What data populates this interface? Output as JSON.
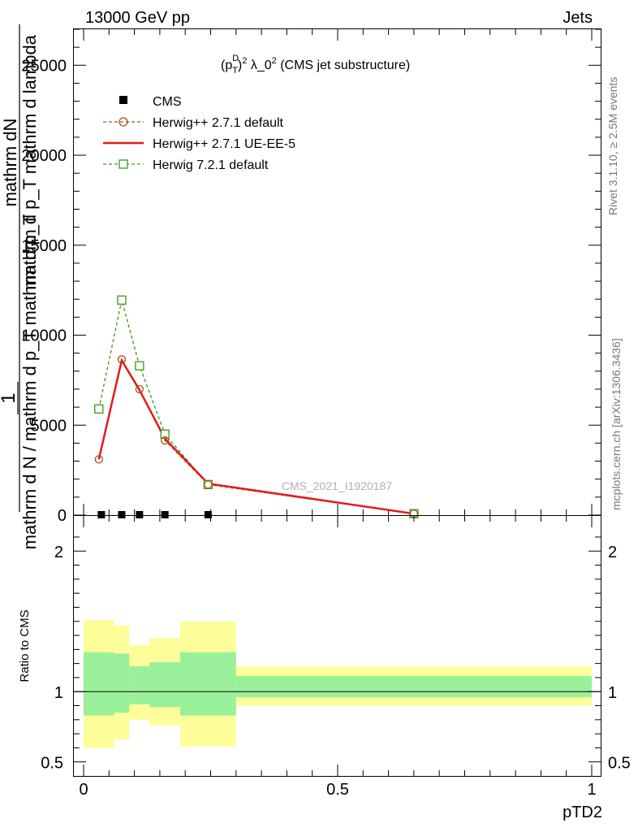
{
  "header": {
    "left": "13000 GeV pp",
    "right": "Jets"
  },
  "side": {
    "rivet": "Rivet 3.1.10, ≥ 2.5M events",
    "mcplots": "mcplots.cern.ch [arXiv:1306.3436]"
  },
  "plot_title": {
    "prefix": "(p",
    "sup_d": "D",
    "sub_t": "T",
    "sup_2": "2",
    "rest": " λ_0",
    "sup_2b": "2",
    "suffix": " (CMS jet substructure)"
  },
  "watermark": "CMS_2021_I1920187",
  "y_label": {
    "one": "1",
    "num": "mathrm dN",
    "den": "mathrm d p_T mathrm d lambda",
    "line2_top": "mathrm d",
    "line2_mid": "2",
    "line2_bot": "N",
    "line2_den": "mathrm d N / mathrm d p_T mathrm d p_T"
  },
  "ratio_label": "Ratio to CMS",
  "x_label": "pTD2",
  "colors": {
    "cms": "#000000",
    "h271_default": "#a0521e",
    "h271_ueee5": "#e8181c",
    "h721_default": "#3a9a12",
    "band_inner": "#9af09a",
    "band_outer": "#fdfd9a"
  },
  "chart_data": [
    {
      "type": "line",
      "title": "(p_T^D)^2 λ_0^2 (CMS jet substructure)",
      "xlim": [
        0,
        1
      ],
      "ylim": [
        0,
        27000
      ],
      "y_ticks": [
        0,
        5000,
        10000,
        15000,
        20000,
        25000
      ],
      "y_tick_labels": [
        "0",
        "5000",
        "10000",
        "15000",
        "20000",
        "25000"
      ],
      "legend_position": "top-left",
      "series": [
        {
          "name": "CMS",
          "x": [
            0.035,
            0.075,
            0.11,
            0.16,
            0.245
          ],
          "values": [
            0,
            0,
            0,
            0,
            0
          ],
          "marker": "square"
        },
        {
          "name": "Herwig++ 2.7.1 default",
          "x": [
            0.03,
            0.075,
            0.11,
            0.16,
            0.245,
            0.65
          ],
          "values": [
            3100,
            8650,
            7000,
            4150,
            1700,
            80
          ],
          "marker": "circle"
        },
        {
          "name": "Herwig++ 2.7.1 UE-EE-5",
          "x": [
            0.03,
            0.075,
            0.11,
            0.16,
            0.245,
            0.65
          ],
          "values": [
            3100,
            8600,
            6950,
            4250,
            1750,
            80
          ],
          "marker": "none"
        },
        {
          "name": "Herwig 7.2.1 default",
          "x": [
            0.03,
            0.075,
            0.11,
            0.16,
            0.245,
            0.65
          ],
          "values": [
            5900,
            11950,
            8300,
            4500,
            1700,
            80
          ],
          "marker": "open-square"
        }
      ]
    },
    {
      "type": "area",
      "ylabel": "Ratio to CMS",
      "xlabel": "pTD2",
      "xlim": [
        0,
        1
      ],
      "ylim": [
        0.4,
        2.25
      ],
      "x_ticks": [
        0,
        0.5,
        1
      ],
      "x_tick_labels": [
        "0",
        "0.5",
        "1"
      ],
      "y_ticks": [
        0.5,
        1,
        2
      ],
      "y_tick_labels": [
        "0.5",
        "1",
        "2"
      ],
      "bins": [
        0,
        0.06,
        0.09,
        0.13,
        0.19,
        0.3,
        1.0
      ],
      "inner_band": {
        "low": [
          0.83,
          0.85,
          0.91,
          0.89,
          0.83,
          0.96
        ],
        "high": [
          1.28,
          1.27,
          1.18,
          1.21,
          1.28,
          1.11
        ]
      },
      "outer_band": {
        "low": [
          0.6,
          0.66,
          0.8,
          0.76,
          0.61,
          0.9
        ],
        "high": [
          1.51,
          1.47,
          1.33,
          1.38,
          1.5,
          1.18
        ]
      },
      "reference_line": 1
    }
  ]
}
